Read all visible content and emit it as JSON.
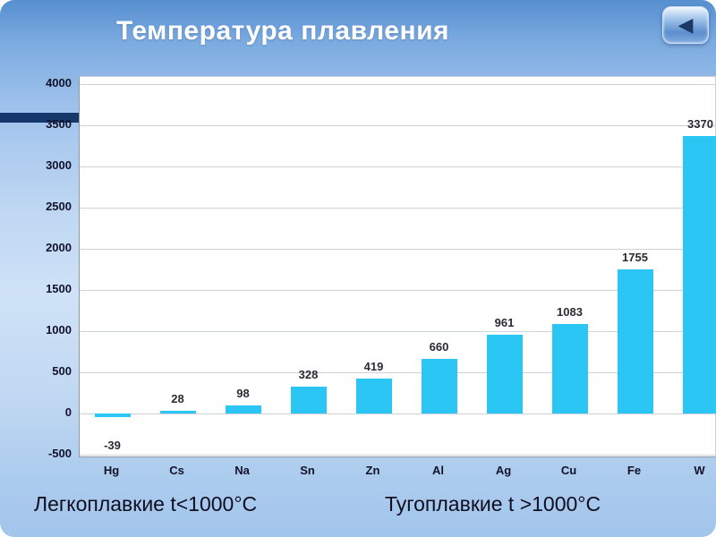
{
  "slide": {
    "title": "Температура плавления",
    "captions": {
      "left": "Легкоплавкие t<1000°C",
      "right": "Тугоплавкие t >1000°C"
    },
    "nav": {
      "back_icon": "◀"
    }
  },
  "chart_data": {
    "type": "bar",
    "title": "Температура плавления",
    "categories": [
      "Hg",
      "Cs",
      "Na",
      "Sn",
      "Zn",
      "Al",
      "Ag",
      "Cu",
      "Fe",
      "W"
    ],
    "values": [
      -39,
      28,
      98,
      328,
      419,
      660,
      961,
      1083,
      1755,
      3370
    ],
    "value_labels": [
      "-39",
      "28",
      "98",
      "328",
      "419",
      "660",
      "961",
      "1083",
      "1755",
      "3370"
    ],
    "xlabel": "",
    "ylabel": "",
    "ylim": [
      -500,
      4000
    ],
    "yticks": [
      4000,
      3500,
      3000,
      2500,
      2000,
      1500,
      1000,
      500,
      0,
      -500
    ],
    "bar_color": "#2cc6f4",
    "grid": true,
    "legend": false
  }
}
